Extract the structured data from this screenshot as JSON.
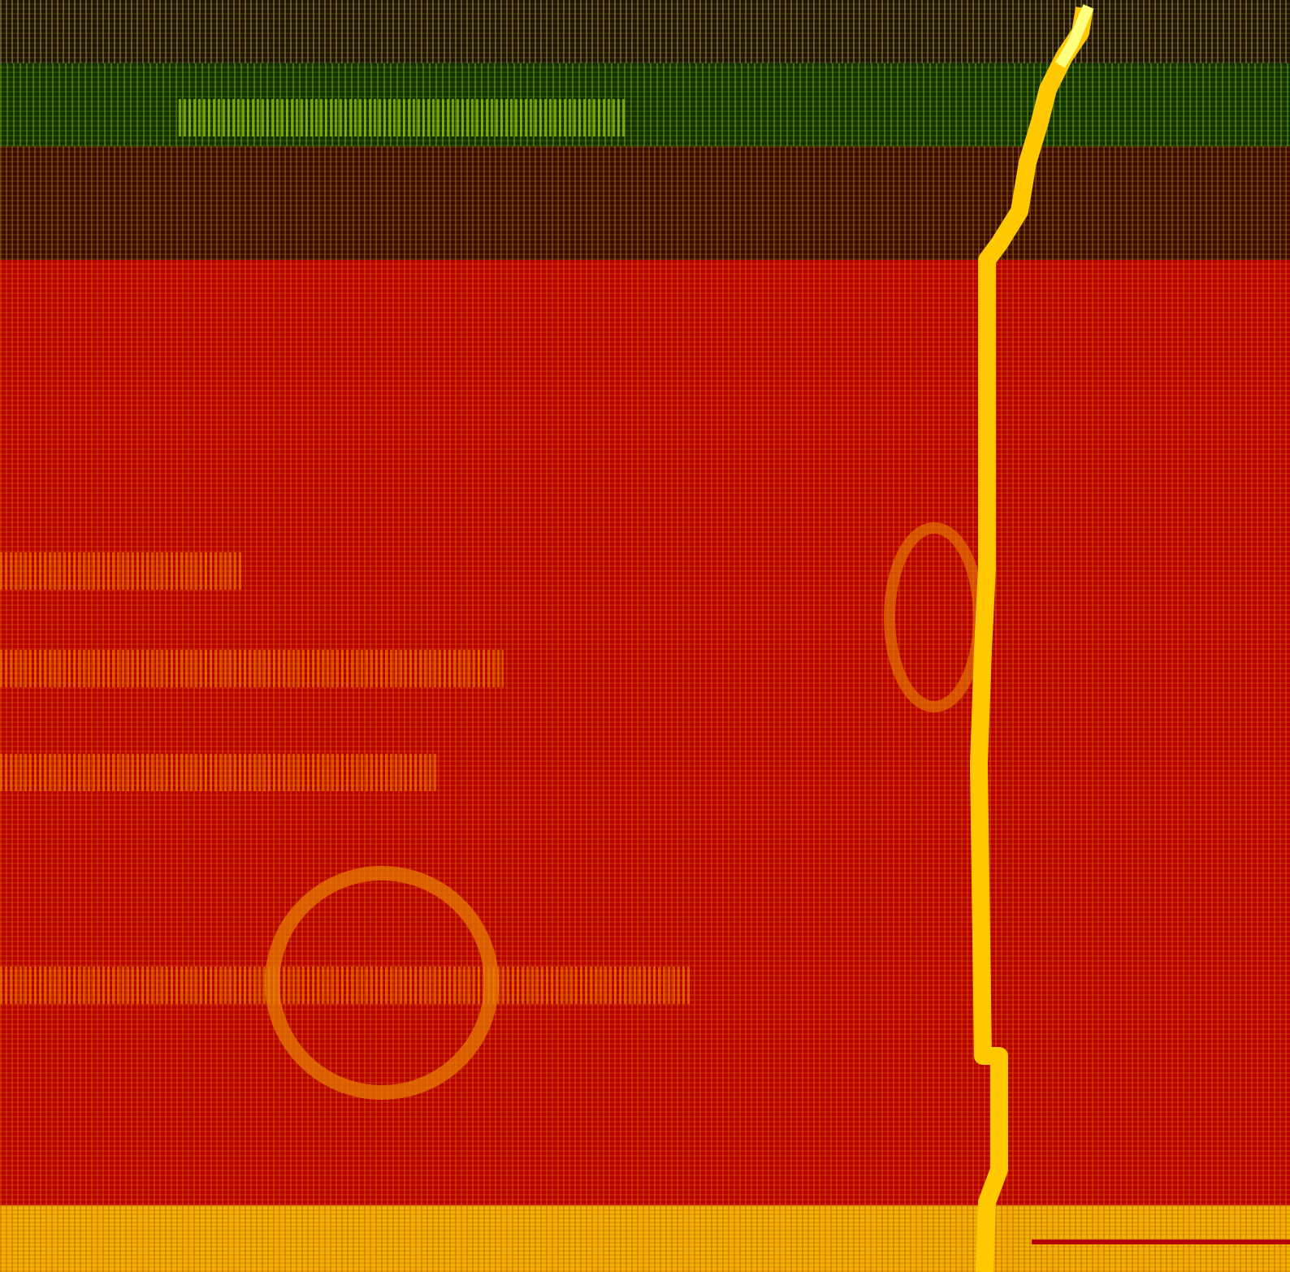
{
  "image": {
    "description_note": "",
    "colors": {
      "background_red": "#b40000",
      "orange_texture": "#e88000",
      "yellow_line": "#ffc800",
      "green_band": "#0f3200",
      "brown_band": "#3c0a00",
      "bottom_band": "#f0b400",
      "highlight": "#ffff80"
    }
  }
}
